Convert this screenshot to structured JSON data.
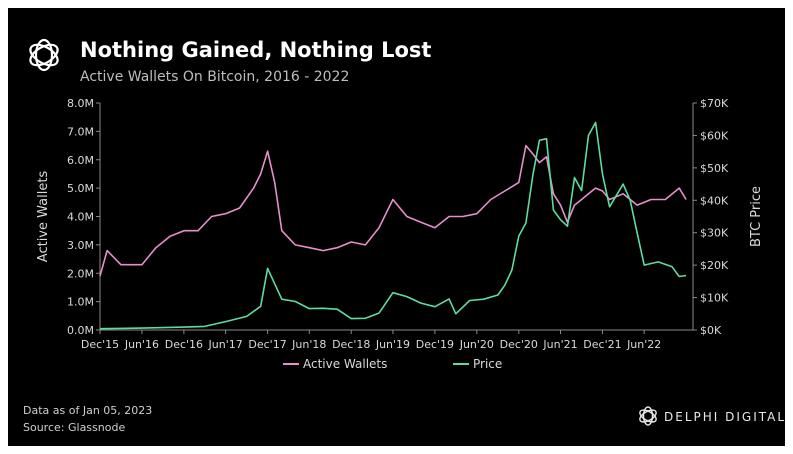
{
  "header": {
    "title": "Nothing Gained, Nothing Lost",
    "subtitle": "Active Wallets On Bitcoin, 2016 - 2022",
    "logo_icon": "delphi-flower-icon"
  },
  "footer": {
    "note": "Data as of Jan 05, 2023",
    "source": "Source: Glassnode",
    "brand": "DELPHI DIGITAL",
    "brand_icon": "delphi-flower-icon"
  },
  "colors": {
    "background": "#000000",
    "active_wallets": "#e58fcb",
    "price": "#5ddca0",
    "text": "#d9d9d9",
    "axis": "#8a8a8a"
  },
  "chart_data": {
    "type": "line",
    "title": "Nothing Gained, Nothing Lost",
    "subtitle": "Active Wallets On Bitcoin, 2016 - 2022",
    "xlabel": "",
    "ylabel": "Active Wallets",
    "y2label": "BTC Price",
    "grid": false,
    "legend_position": "bottom",
    "x_ticks": [
      "Dec'15",
      "Jun'16",
      "Dec'16",
      "Jun'17",
      "Dec'17",
      "Jun'18",
      "Dec'18",
      "Jun'19",
      "Dec'19",
      "Jun'20",
      "Dec'20",
      "Jun'21",
      "Dec'21",
      "Jun'22"
    ],
    "y_ticks": [
      "0.0M",
      "1.0M",
      "2.0M",
      "3.0M",
      "4.0M",
      "5.0M",
      "6.0M",
      "7.0M",
      "8.0M"
    ],
    "y2_ticks": [
      "$0K",
      "$10K",
      "$20K",
      "$30K",
      "$40K",
      "$50K",
      "$60K",
      "$70K"
    ],
    "ylim": [
      0,
      8.0
    ],
    "y2lim": [
      0,
      70
    ],
    "series": [
      {
        "name": "Active Wallets",
        "axis": "left",
        "unit": "M",
        "x": [
          "2015-12",
          "2016-01",
          "2016-03",
          "2016-06",
          "2016-08",
          "2016-10",
          "2016-12",
          "2017-02",
          "2017-04",
          "2017-06",
          "2017-08",
          "2017-10",
          "2017-11",
          "2017-12",
          "2018-01",
          "2018-02",
          "2018-04",
          "2018-06",
          "2018-08",
          "2018-10",
          "2018-12",
          "2019-02",
          "2019-04",
          "2019-06",
          "2019-08",
          "2019-10",
          "2019-12",
          "2020-02",
          "2020-04",
          "2020-06",
          "2020-08",
          "2020-10",
          "2020-12",
          "2021-01",
          "2021-02",
          "2021-03",
          "2021-04",
          "2021-05",
          "2021-06",
          "2021-07",
          "2021-08",
          "2021-09",
          "2021-10",
          "2021-11",
          "2021-12",
          "2022-01",
          "2022-03",
          "2022-05",
          "2022-07",
          "2022-09",
          "2022-11",
          "2022-12"
        ],
        "values": [
          1.9,
          2.8,
          2.3,
          2.3,
          2.9,
          3.3,
          3.5,
          3.5,
          4.0,
          4.1,
          4.3,
          5.0,
          5.5,
          6.3,
          5.2,
          3.5,
          3.0,
          2.9,
          2.8,
          2.9,
          3.1,
          3.0,
          3.6,
          4.6,
          4.0,
          3.8,
          3.6,
          4.0,
          4.0,
          4.1,
          4.6,
          4.9,
          5.2,
          6.5,
          6.2,
          5.9,
          6.1,
          4.8,
          4.4,
          3.8,
          4.4,
          4.6,
          4.8,
          5.0,
          4.9,
          4.6,
          4.8,
          4.4,
          4.6,
          4.6,
          5.0,
          4.6
        ]
      },
      {
        "name": "Price",
        "axis": "right",
        "unit": "$K",
        "x": [
          "2015-12",
          "2016-06",
          "2016-12",
          "2017-03",
          "2017-06",
          "2017-09",
          "2017-11",
          "2017-12",
          "2018-02",
          "2018-04",
          "2018-06",
          "2018-08",
          "2018-10",
          "2018-12",
          "2019-02",
          "2019-04",
          "2019-06",
          "2019-08",
          "2019-10",
          "2019-12",
          "2020-02",
          "2020-03",
          "2020-05",
          "2020-07",
          "2020-09",
          "2020-10",
          "2020-11",
          "2020-12",
          "2021-01",
          "2021-02",
          "2021-03",
          "2021-04",
          "2021-05",
          "2021-06",
          "2021-07",
          "2021-08",
          "2021-09",
          "2021-10",
          "2021-11",
          "2021-12",
          "2022-01",
          "2022-03",
          "2022-04",
          "2022-05",
          "2022-06",
          "2022-08",
          "2022-10",
          "2022-11",
          "2022-12"
        ],
        "values": [
          0.4,
          0.6,
          0.9,
          1.1,
          2.6,
          4.2,
          7.3,
          19.0,
          9.5,
          8.8,
          6.6,
          6.7,
          6.4,
          3.5,
          3.6,
          5.2,
          11.5,
          10.3,
          8.3,
          7.2,
          9.6,
          5.0,
          9.1,
          9.5,
          10.8,
          13.8,
          18.5,
          29.0,
          33.0,
          48.0,
          58.5,
          59.0,
          37.0,
          34.0,
          32.0,
          47.0,
          43.0,
          60.0,
          64.0,
          48.0,
          38.0,
          45.0,
          40.0,
          30.0,
          20.0,
          21.0,
          19.5,
          16.5,
          16.8
        ]
      }
    ]
  }
}
